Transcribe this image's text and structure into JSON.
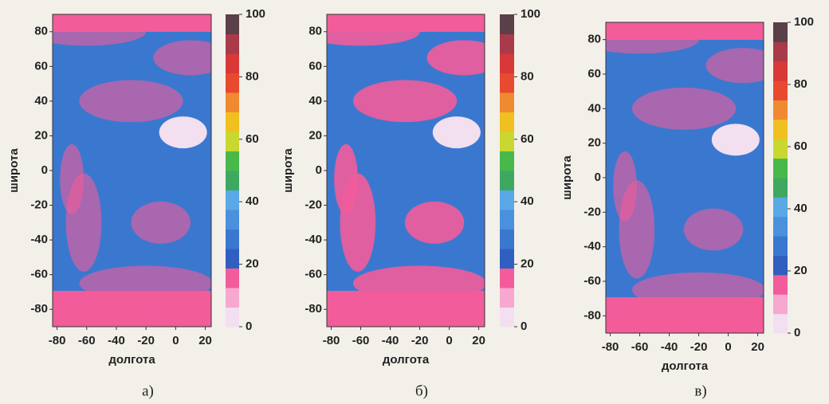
{
  "chart_data": [
    {
      "type": "heatmap",
      "caption": "а)",
      "xlabel": "долгота",
      "ylabel": "широта",
      "xlim": [
        -83,
        24
      ],
      "xticks": [
        -80,
        -60,
        -40,
        -20,
        0,
        20
      ],
      "ylim": [
        -90,
        90
      ],
      "yticks": [
        -80,
        -60,
        -40,
        -20,
        0,
        20,
        40,
        60,
        80
      ],
      "clim": [
        0,
        100
      ],
      "cticks": [
        0,
        20,
        40,
        60,
        80,
        100
      ],
      "colors": [
        "#f2dff0",
        "#f7a8d0",
        "#f25c9a",
        "#2f5fc0",
        "#3a78d0",
        "#4a90dc",
        "#5aa8e6",
        "#3fa860",
        "#48b84a",
        "#c8d830",
        "#f0c020",
        "#f08a30",
        "#e84a30",
        "#d83838",
        "#a83a4a",
        "#5a4048"
      ]
    },
    {
      "type": "heatmap",
      "caption": "б)",
      "xlabel": "долгота",
      "ylabel": "широта",
      "xlim": [
        -83,
        24
      ],
      "xticks": [
        -80,
        -60,
        -40,
        -20,
        0,
        20
      ],
      "ylim": [
        -90,
        90
      ],
      "yticks": [
        -80,
        -60,
        -40,
        -20,
        0,
        20,
        40,
        60,
        80
      ],
      "clim": [
        0,
        100
      ],
      "cticks": [
        0,
        20,
        40,
        60,
        80,
        100
      ],
      "colors": [
        "#f2dff0",
        "#f7a8d0",
        "#f25c9a",
        "#2f5fc0",
        "#3a78d0",
        "#4a90dc",
        "#5aa8e6",
        "#3fa860",
        "#48b84a",
        "#c8d830",
        "#f0c020",
        "#f08a30",
        "#e84a30",
        "#d83838",
        "#a83a4a",
        "#5a4048"
      ]
    },
    {
      "type": "heatmap",
      "caption": "в)",
      "xlabel": "долгота",
      "ylabel": "широта",
      "xlim": [
        -83,
        24
      ],
      "xticks": [
        -80,
        -60,
        -40,
        -20,
        0,
        20
      ],
      "ylim": [
        -90,
        90
      ],
      "yticks": [
        -80,
        -60,
        -40,
        -20,
        0,
        20,
        40,
        60,
        80
      ],
      "clim": [
        0,
        100
      ],
      "cticks": [
        0,
        20,
        40,
        60,
        80,
        100
      ],
      "colors": [
        "#f2dff0",
        "#f7a8d0",
        "#f25c9a",
        "#2f5fc0",
        "#3a78d0",
        "#4a90dc",
        "#5aa8e6",
        "#3fa860",
        "#48b84a",
        "#c8d830",
        "#f0c020",
        "#f08a30",
        "#e84a30",
        "#d83838",
        "#a83a4a",
        "#5a4048"
      ]
    }
  ]
}
